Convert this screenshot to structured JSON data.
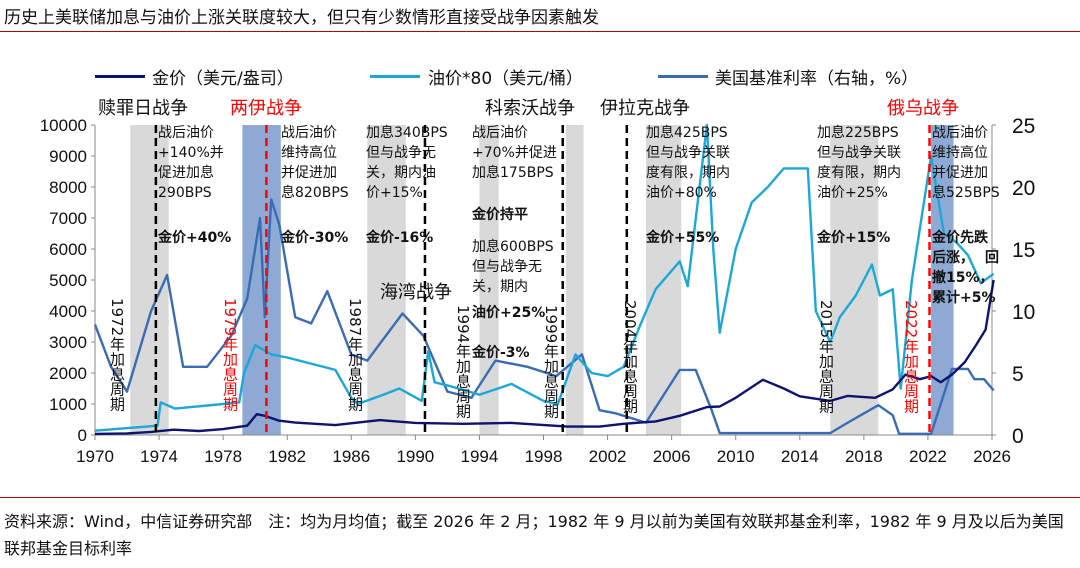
{
  "title": "历史上美联储加息与油价上涨关联度较大，但只有少数情形直接受战争因素触发",
  "footer": "资料来源：Wind，中信证券研究部　注：均为月均值；截至 2026 年 2 月；1982 年 9 月以前为美国有效联邦基金利率，1982 年 9 月及以后为美国联邦基金目标利率",
  "wars": [
    {
      "label": "赎罪日战争",
      "color": "#111111"
    },
    {
      "label": "两伊战争",
      "color": "#ff0000"
    },
    {
      "label": "海湾战争",
      "color": "#111111"
    },
    {
      "label": "科索沃战争",
      "color": "#111111"
    },
    {
      "label": "伊拉克战争",
      "color": "#111111"
    },
    {
      "label": "俄乌战争",
      "color": "#ff0000"
    }
  ],
  "cycles": [
    "1972年加息周期",
    "1979年加息周期",
    "1987年加息周期",
    "1994年加息周期",
    "1999年加息周期",
    "2004年加息周期",
    "2015年加息周期",
    "2022年加息周期"
  ],
  "notes": {
    "n1973": "战后油价\n+140%并\n促进加息\n290BPS",
    "g1973": "金价+40%",
    "n1980": "战后油价\n维持高位\n并促进加\n息820BPS",
    "g1980": "金价-30%",
    "n1987": "加息340BPS\n但与战争无\n关，期内油\n价+15%",
    "g1987": "金价-16%",
    "n1999": "战后油价\n+70%并促进\n加息175BPS",
    "g1999": "金价持平",
    "n1994a": "加息600BPS\n但与战争无\n关，期内",
    "n1994b": "油价+25%",
    "g1994": "金价-3%",
    "n2004": "加息425BPS\n但与战争关联\n度有限，期内\n油价+80%",
    "g2004": "金价+55%",
    "n2015": "加息225BPS\n但与战争关联\n度有限，期内\n油价+25%",
    "g2015": "金价+15%",
    "n2022": "战后油价\n维持高位\n并促进加\n息525BPS",
    "g2022a": "金价先跌\n后涨，",
    "g2022b": "回",
    "g2022c": "撤15%，",
    "g2022d": "累计+5%"
  },
  "colors": {
    "gold": "#0c1470",
    "oil": "#1ba8d8",
    "rate": "#3a6cb5",
    "shade": "#d9d9d9",
    "war_shade": "#8eaad4",
    "accent": "#c00000"
  },
  "chart_data": {
    "type": "line",
    "xlim": [
      1970,
      2026
    ],
    "xticks": [
      1970,
      1974,
      1978,
      1982,
      1986,
      1990,
      1994,
      1998,
      2002,
      2006,
      2010,
      2014,
      2018,
      2022,
      2026
    ],
    "ylim_left": [
      0,
      10000
    ],
    "yticks_left": [
      0,
      1000,
      2000,
      3000,
      4000,
      5000,
      6000,
      7000,
      8000,
      9000,
      10000
    ],
    "ylim_right": [
      0,
      25
    ],
    "yticks_right": [
      0,
      5,
      10,
      15,
      20,
      25
    ],
    "legend_position": "top",
    "series": [
      {
        "name": "金价（美元/盎司）",
        "axis": "left",
        "color": "#0c1470",
        "x": [
          1970,
          1972,
          1973.5,
          1974.9,
          1976.5,
          1978,
          1979.5,
          1980.1,
          1980.6,
          1981.5,
          1982.5,
          1985,
          1987.8,
          1990,
          1993,
          1996,
          1999.5,
          2001.5,
          2003,
          2005,
          2006.5,
          2008.2,
          2009,
          2010,
          2011.7,
          2013,
          2014,
          2015.9,
          2017,
          2018.7,
          2019.8,
          2020.6,
          2021.5,
          2022.2,
          2022.8,
          2023.5,
          2024.3,
          2025,
          2025.6,
          2026.1
        ],
        "y": [
          35,
          50,
          100,
          170,
          130,
          190,
          300,
          670,
          620,
          460,
          400,
          320,
          480,
          390,
          360,
          390,
          270,
          270,
          360,
          440,
          620,
          900,
          920,
          1200,
          1780,
          1500,
          1250,
          1100,
          1260,
          1200,
          1470,
          1950,
          1800,
          1900,
          1700,
          1950,
          2350,
          2900,
          3400,
          5000
        ]
      },
      {
        "name": "油价*80（美元/桶）",
        "axis": "left",
        "color": "#1ba8d8",
        "x": [
          1970,
          1973.9,
          1974.1,
          1975,
          1978,
          1979,
          1979.3,
          1980,
          1981,
          1982,
          1985,
          1986,
          1986.4,
          1988,
          1989,
          1990.4,
          1990.8,
          1991.2,
          1992,
          1994,
          1996,
          1998,
          1998.9,
          2000,
          2001,
          2002,
          2003,
          2004,
          2005,
          2006.5,
          2007,
          2008.2,
          2008.6,
          2009,
          2010,
          2011,
          2012,
          2013,
          2014.5,
          2015,
          2015.9,
          2016.5,
          2017.5,
          2018.5,
          2019,
          2019.8,
          2020.3,
          2021,
          2022.2,
          2023,
          2023.8,
          2024.5,
          2025.3,
          2026.1
        ],
        "y": [
          140,
          300,
          1050,
          850,
          1000,
          1050,
          2000,
          2900,
          2600,
          2500,
          2100,
          1200,
          1000,
          1300,
          1500,
          1100,
          2700,
          1700,
          1600,
          1300,
          1650,
          1100,
          1000,
          2600,
          2000,
          1900,
          2200,
          3500,
          4700,
          5600,
          4800,
          10000,
          6000,
          3300,
          6000,
          7500,
          8000,
          8600,
          8600,
          4000,
          3000,
          3800,
          4500,
          5500,
          4500,
          4700,
          1500,
          5000,
          9000,
          6500,
          6200,
          5800,
          4900,
          5200
        ]
      },
      {
        "name": "美国基准利率（右轴，%）",
        "axis": "right",
        "color": "#3a6cb5",
        "x": [
          1970,
          1971,
          1972,
          1973.5,
          1974.5,
          1975.5,
          1977,
          1978.5,
          1979.5,
          1980.3,
          1980.6,
          1981,
          1981.5,
          1982.5,
          1983.5,
          1984.5,
          1986,
          1987,
          1989.2,
          1990.5,
          1992,
          1993.5,
          1995,
          1997,
          1998.8,
          2000.4,
          2001.5,
          2002.5,
          2004.4,
          2006.5,
          2007.5,
          2008.5,
          2009,
          2015.9,
          2017,
          2018.9,
          2019.8,
          2020.2,
          2022.2,
          2023.5,
          2024.5,
          2024.9,
          2025.5,
          2025.9,
          2026.1
        ],
        "y": [
          8.9,
          5.5,
          3.5,
          10,
          12.9,
          5.5,
          5.5,
          8,
          11,
          17.5,
          9.5,
          19,
          17,
          9.5,
          9,
          11.6,
          6.5,
          6,
          9.8,
          8,
          3.5,
          3,
          6,
          5.5,
          4.75,
          6.5,
          2,
          1.75,
          1,
          5.25,
          5.25,
          2,
          0.15,
          0.15,
          1,
          2.4,
          1.6,
          0.1,
          0.1,
          5.33,
          5.33,
          4.5,
          4.5,
          3.9,
          3.6
        ]
      }
    ],
    "shaded_periods": [
      [
        1972.2,
        1974.6,
        "gray"
      ],
      [
        1979.2,
        1981.6,
        "blue"
      ],
      [
        1987.0,
        1989.4,
        "gray"
      ],
      [
        1994.0,
        1995.2,
        "gray"
      ],
      [
        1999.4,
        2000.5,
        "gray"
      ],
      [
        2004.4,
        2006.6,
        "gray"
      ],
      [
        2015.9,
        2018.9,
        "gray"
      ],
      [
        2022.2,
        2023.6,
        "blue"
      ]
    ],
    "war_lines": [
      [
        1973.8,
        "black"
      ],
      [
        1980.7,
        "red"
      ],
      [
        1990.6,
        "black"
      ],
      [
        1999.2,
        "black"
      ],
      [
        2003.2,
        "black"
      ],
      [
        2022.1,
        "red"
      ]
    ]
  }
}
